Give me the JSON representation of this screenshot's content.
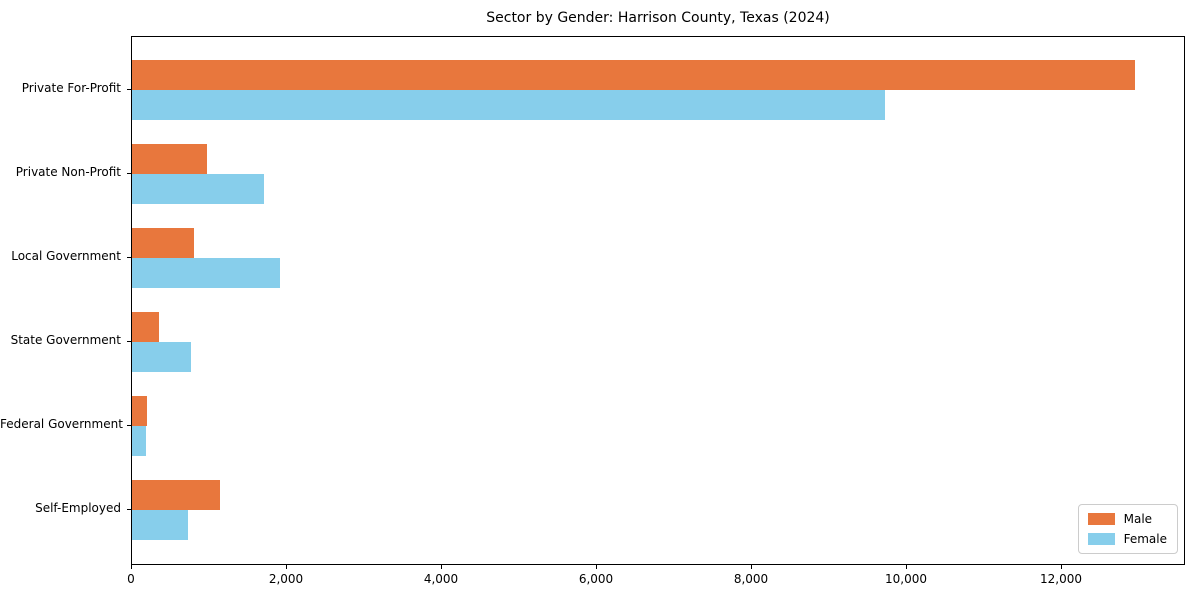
{
  "chart_data": {
    "type": "bar",
    "orientation": "horizontal",
    "title": "Sector by Gender: Harrison County, Texas (2024)",
    "categories": [
      "Private For-Profit",
      "Private Non-Profit",
      "Local Government",
      "State Government",
      "Federal Government",
      "Self-Employed"
    ],
    "series": [
      {
        "name": "Male",
        "color": "#e8773d",
        "values": [
          12970,
          970,
          800,
          350,
          190,
          1140
        ]
      },
      {
        "name": "Female",
        "color": "#87ceeb",
        "values": [
          9740,
          1700,
          1910,
          760,
          180,
          720
        ]
      }
    ],
    "xlabel": "",
    "ylabel": "",
    "xlim": [
      0,
      13600
    ],
    "xticks": [
      0,
      2000,
      4000,
      6000,
      8000,
      10000,
      12000
    ],
    "xtick_labels": [
      "0",
      "2,000",
      "4,000",
      "6,000",
      "8,000",
      "10,000",
      "12,000"
    ],
    "grid": false,
    "legend": {
      "position": "lower-right",
      "entries": [
        "Male",
        "Female"
      ]
    },
    "colors": {
      "axis": "#000000",
      "text": "#000000",
      "legend_border": "#cccccc",
      "background": "#ffffff"
    }
  }
}
